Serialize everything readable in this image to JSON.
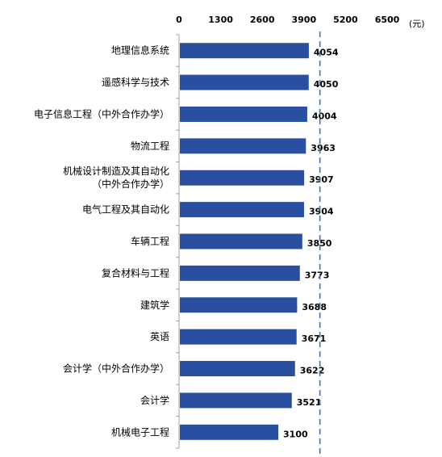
{
  "chart_data": {
    "type": "bar",
    "orientation": "horizontal",
    "unit": "(元)",
    "xlim": [
      0,
      6500
    ],
    "ticks": [
      "0",
      "1300",
      "2600",
      "3900",
      "5200",
      "6500"
    ],
    "reference_line": 4400,
    "bar_color": "#2b4fa0",
    "reference_color": "#4a6fa5",
    "grid": false,
    "categories": [
      [
        "地理信息系统"
      ],
      [
        "遥感科学与技术"
      ],
      [
        "电子信息工程（中外合作办学）"
      ],
      [
        "物流工程"
      ],
      [
        "机械设计制造及其自动化",
        "（中外合作办学）"
      ],
      [
        "电气工程及其自动化"
      ],
      [
        "车辆工程"
      ],
      [
        "复合材料与工程"
      ],
      [
        "建筑学"
      ],
      [
        "英语"
      ],
      [
        "会计学（中外合作办学）"
      ],
      [
        "会计学"
      ],
      [
        "机械电子工程"
      ]
    ],
    "values": [
      4054,
      4050,
      4004,
      3963,
      3907,
      3904,
      3850,
      3773,
      3688,
      3671,
      3622,
      3521,
      3100
    ]
  }
}
